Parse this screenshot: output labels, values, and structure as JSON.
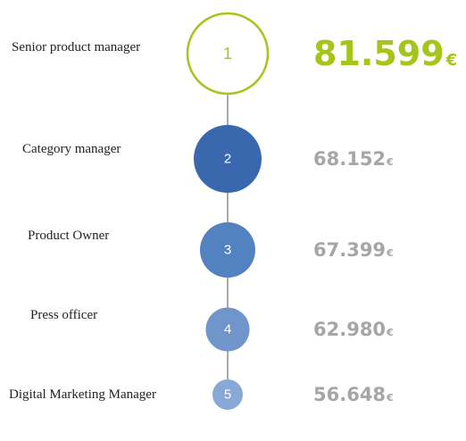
{
  "chart_data": {
    "type": "bubble-ranking",
    "title": "",
    "currency": "€",
    "series": [
      {
        "rank": "1",
        "role": "Senior product manager",
        "salary": 81599,
        "salary_text": "81.599"
      },
      {
        "rank": "2",
        "role": "Category manager",
        "salary": 68152,
        "salary_text": "68.152"
      },
      {
        "rank": "3",
        "role": "Product Owner",
        "salary": 67399,
        "salary_text": "67.399"
      },
      {
        "rank": "4",
        "role": "Press officer",
        "salary": 62980,
        "salary_text": "62.980"
      },
      {
        "rank": "5",
        "role": "Digital Marketing Manager",
        "salary": 56648,
        "salary_text": "56.648"
      }
    ],
    "colors": {
      "highlight": "#a6c51a",
      "connector": "#555555",
      "value_muted": "#a6a6a6",
      "bubble_fills": [
        "#ffffff",
        "#3a68ae",
        "#5282c0",
        "#6f95cb",
        "#88a9d6"
      ]
    }
  }
}
